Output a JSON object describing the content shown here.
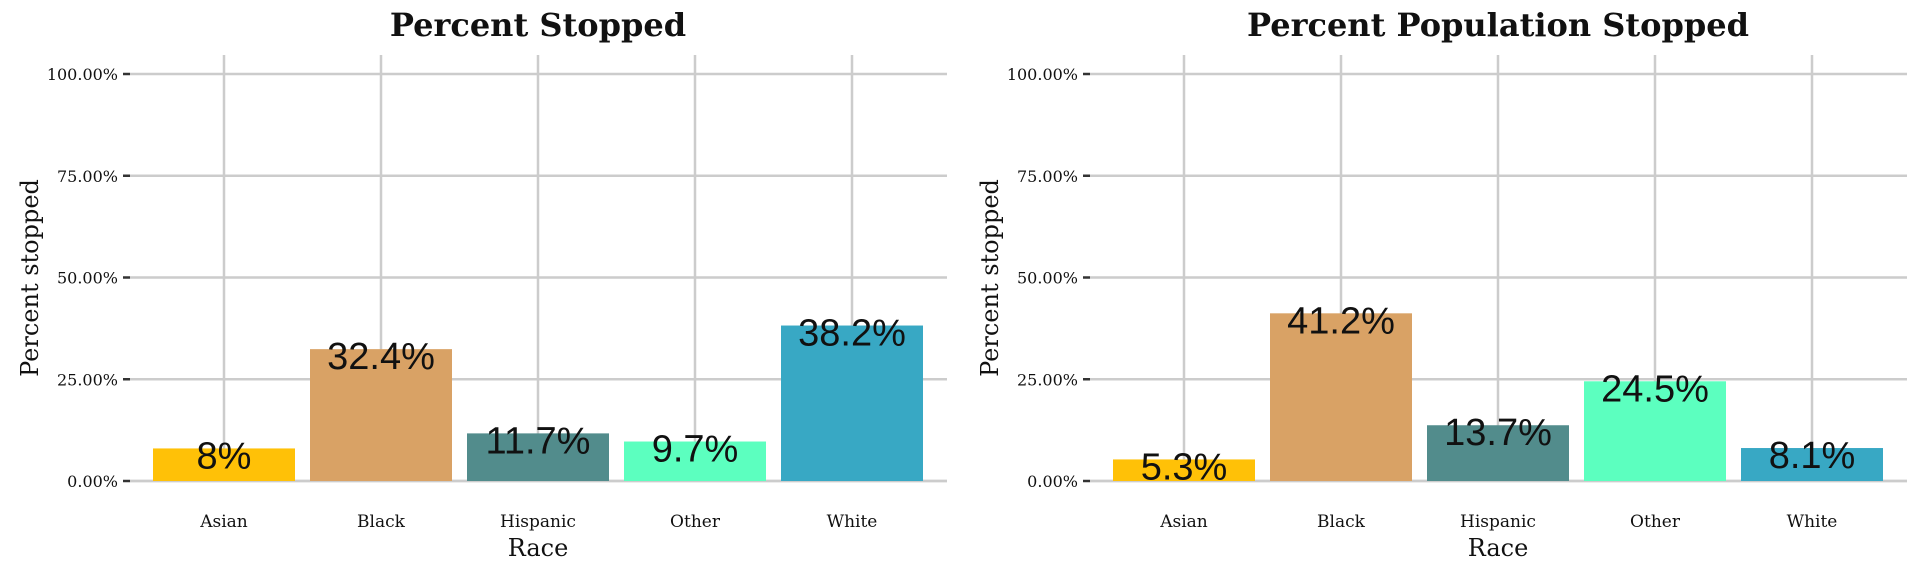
{
  "chart_data": [
    {
      "type": "bar",
      "title": "Percent Stopped",
      "xlabel": "Race",
      "ylabel": "Percent stopped",
      "categories": [
        "Asian",
        "Black",
        "Hispanic",
        "Other",
        "White"
      ],
      "values": [
        8.0,
        32.4,
        11.7,
        9.7,
        38.2
      ],
      "data_labels": [
        "8%",
        "32.4%",
        "11.7%",
        "9.7%",
        "38.2%"
      ],
      "ylim": [
        0,
        100
      ],
      "yticks": [
        0,
        25,
        50,
        75,
        100
      ],
      "ytick_labels": [
        "0.00%",
        "25.00%",
        "50.00%",
        "75.00%",
        "100.00%"
      ],
      "colors": [
        "#FFC107",
        "#D9A265",
        "#528C8C",
        "#5CFFBF",
        "#38A8C4"
      ],
      "grid": true
    },
    {
      "type": "bar",
      "title": "Percent Population Stopped",
      "xlabel": "Race",
      "ylabel": "Percent stopped",
      "categories": [
        "Asian",
        "Black",
        "Hispanic",
        "Other",
        "White"
      ],
      "values": [
        5.3,
        41.2,
        13.7,
        24.5,
        8.1
      ],
      "data_labels": [
        "5.3%",
        "41.2%",
        "13.7%",
        "24.5%",
        "8.1%"
      ],
      "ylim": [
        0,
        100
      ],
      "yticks": [
        0,
        25,
        50,
        75,
        100
      ],
      "ytick_labels": [
        "0.00%",
        "25.00%",
        "50.00%",
        "75.00%",
        "100.00%"
      ],
      "colors": [
        "#FFC107",
        "#D9A265",
        "#528C8C",
        "#5CFFBF",
        "#38A8C4"
      ],
      "grid": true
    }
  ]
}
